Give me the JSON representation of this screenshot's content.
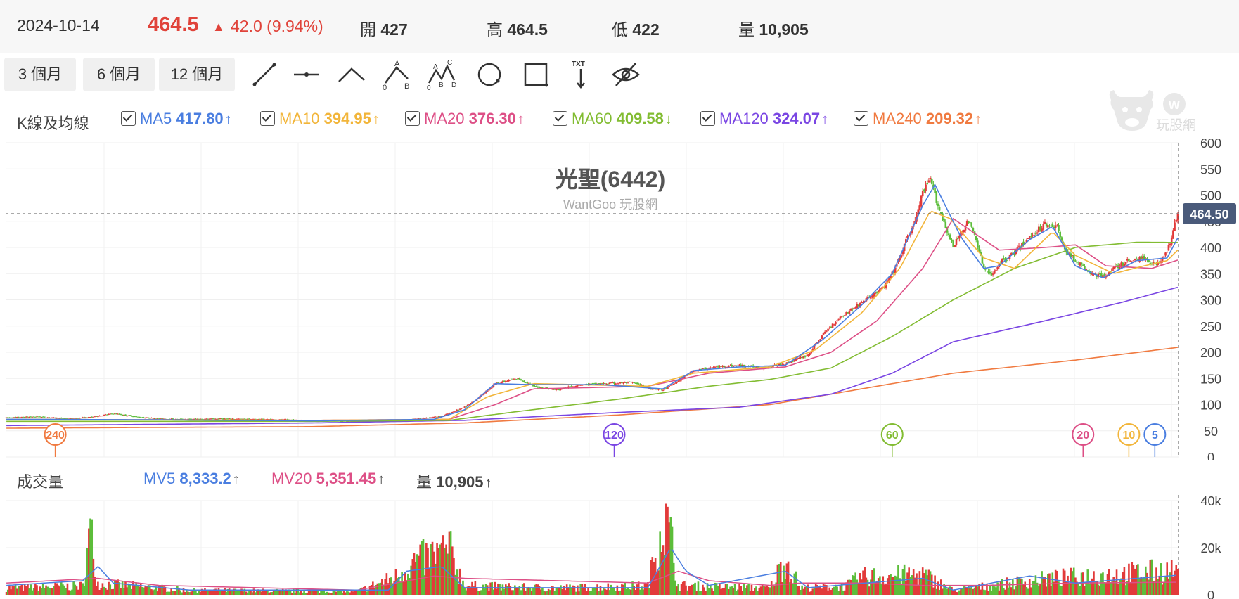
{
  "header": {
    "date": "2024-10-14",
    "price": "464.5",
    "change_arrow": "▲",
    "change": "42.0 (9.94%)",
    "open_label": "開",
    "open": "427",
    "high_label": "高",
    "high": "464.5",
    "low_label": "低",
    "low": "422",
    "volume_label": "量",
    "volume": "10,905"
  },
  "periods": [
    "3 個月",
    "6 個月",
    "12 個月"
  ],
  "tools": [
    "line-tool-icon",
    "horizontal-line-tool-icon",
    "angle-tool-icon",
    "abc-wave-tool-icon",
    "abcd-wave-tool-icon",
    "circle-tool-icon",
    "rectangle-tool-icon",
    "text-tool-icon",
    "hide-drawings-icon"
  ],
  "tool_labels": {
    "a": "A",
    "b": "B",
    "c": "C",
    "d": "D",
    "zero": "0",
    "txt": "TXT"
  },
  "legend": {
    "title": "K線及均線",
    "ma": [
      {
        "name": "MA5",
        "value": "417.80",
        "arrow": "↑",
        "color": "#4a7ee0"
      },
      {
        "name": "MA10",
        "value": "394.95",
        "arrow": "↑",
        "color": "#f2b53a"
      },
      {
        "name": "MA20",
        "value": "376.30",
        "arrow": "↑",
        "color": "#dd4f86"
      },
      {
        "name": "MA60",
        "value": "409.58",
        "arrow": "↓",
        "color": "#82bc32"
      },
      {
        "name": "MA120",
        "value": "324.07",
        "arrow": "↑",
        "color": "#7a46e3"
      },
      {
        "name": "MA240",
        "value": "209.32",
        "arrow": "↑",
        "color": "#f07a40"
      }
    ]
  },
  "watermark": {
    "title": "光聖(6442)",
    "subtitle": "WantGoo 玩股網",
    "logo_text": "玩股網"
  },
  "volume_legend": {
    "title": "成交量",
    "mv5_label": "MV5",
    "mv5": "8,333.2",
    "mv5_arrow": "↑",
    "mv5_color": "#4a7ee0",
    "mv20_label": "MV20",
    "mv20": "5,351.45",
    "mv20_arrow": "↑",
    "mv20_color": "#dd4f86",
    "vol_label": "量",
    "vol": "10,905",
    "vol_arrow": "↑"
  },
  "chart_data": {
    "type": "candlestick",
    "title": "光聖(6442)",
    "price_axis": {
      "ticks": [
        0,
        50,
        100,
        150,
        200,
        250,
        300,
        350,
        400,
        450,
        500,
        550,
        600
      ],
      "ylim": [
        0,
        600
      ]
    },
    "current_price": 464.5,
    "current_price_label": "464.50",
    "volume_axis": {
      "tick_labels": [
        "0",
        "20k",
        "40k"
      ],
      "ticks": [
        0,
        20000,
        40000
      ],
      "ylim": [
        0,
        40000
      ]
    },
    "colors": {
      "up": "#e23a3a",
      "down": "#5cbd3a",
      "ma5": "#4a7ee0",
      "ma10": "#f2b53a",
      "ma20": "#dd4f86",
      "ma60": "#82bc32",
      "ma120": "#7a46e3",
      "ma240": "#f07a40"
    },
    "price_keypoints": [
      [
        0,
        75
      ],
      [
        20,
        77
      ],
      [
        40,
        73
      ],
      [
        55,
        76
      ],
      [
        70,
        83
      ],
      [
        90,
        75
      ],
      [
        110,
        72
      ],
      [
        140,
        73
      ],
      [
        170,
        72
      ],
      [
        200,
        70
      ],
      [
        230,
        68
      ],
      [
        260,
        70
      ],
      [
        285,
        78
      ],
      [
        300,
        95
      ],
      [
        310,
        115
      ],
      [
        320,
        140
      ],
      [
        335,
        150
      ],
      [
        345,
        135
      ],
      [
        360,
        128
      ],
      [
        375,
        138
      ],
      [
        390,
        140
      ],
      [
        410,
        142
      ],
      [
        420,
        132
      ],
      [
        430,
        128
      ],
      [
        440,
        145
      ],
      [
        450,
        165
      ],
      [
        465,
        172
      ],
      [
        480,
        175
      ],
      [
        495,
        170
      ],
      [
        510,
        178
      ],
      [
        525,
        195
      ],
      [
        535,
        235
      ],
      [
        545,
        265
      ],
      [
        555,
        285
      ],
      [
        565,
        305
      ],
      [
        575,
        325
      ],
      [
        580,
        350
      ],
      [
        585,
        380
      ],
      [
        590,
        420
      ],
      [
        595,
        450
      ],
      [
        600,
        505
      ],
      [
        605,
        530
      ],
      [
        610,
        480
      ],
      [
        615,
        440
      ],
      [
        620,
        400
      ],
      [
        625,
        430
      ],
      [
        630,
        450
      ],
      [
        635,
        415
      ],
      [
        640,
        360
      ],
      [
        645,
        345
      ],
      [
        650,
        370
      ],
      [
        660,
        390
      ],
      [
        670,
        420
      ],
      [
        680,
        445
      ],
      [
        688,
        440
      ],
      [
        692,
        400
      ],
      [
        700,
        375
      ],
      [
        710,
        350
      ],
      [
        718,
        345
      ],
      [
        725,
        360
      ],
      [
        735,
        375
      ],
      [
        745,
        380
      ],
      [
        752,
        368
      ],
      [
        758,
        380
      ],
      [
        762,
        410
      ],
      [
        765,
        450
      ],
      [
        767,
        464.5
      ]
    ],
    "ma_keypoints": {
      "ma5": [
        [
          0,
          72
        ],
        [
          100,
          71
        ],
        [
          200,
          69
        ],
        [
          280,
          72
        ],
        [
          300,
          90
        ],
        [
          320,
          140
        ],
        [
          345,
          138
        ],
        [
          390,
          138
        ],
        [
          430,
          130
        ],
        [
          450,
          165
        ],
        [
          480,
          172
        ],
        [
          510,
          175
        ],
        [
          535,
          225
        ],
        [
          560,
          290
        ],
        [
          580,
          350
        ],
        [
          600,
          480
        ],
        [
          608,
          520
        ],
        [
          625,
          420
        ],
        [
          640,
          360
        ],
        [
          650,
          365
        ],
        [
          670,
          415
        ],
        [
          685,
          440
        ],
        [
          700,
          365
        ],
        [
          718,
          342
        ],
        [
          740,
          375
        ],
        [
          760,
          380
        ],
        [
          767,
          418
        ]
      ],
      "ma10": [
        [
          0,
          72
        ],
        [
          200,
          70
        ],
        [
          290,
          72
        ],
        [
          315,
          115
        ],
        [
          345,
          140
        ],
        [
          420,
          135
        ],
        [
          450,
          160
        ],
        [
          500,
          172
        ],
        [
          530,
          205
        ],
        [
          560,
          275
        ],
        [
          585,
          360
        ],
        [
          605,
          470
        ],
        [
          618,
          455
        ],
        [
          640,
          380
        ],
        [
          660,
          360
        ],
        [
          685,
          430
        ],
        [
          700,
          385
        ],
        [
          725,
          350
        ],
        [
          745,
          365
        ],
        [
          760,
          375
        ],
        [
          767,
          395
        ]
      ],
      "ma20": [
        [
          0,
          72
        ],
        [
          200,
          70
        ],
        [
          290,
          72
        ],
        [
          320,
          100
        ],
        [
          345,
          130
        ],
        [
          420,
          135
        ],
        [
          460,
          160
        ],
        [
          510,
          172
        ],
        [
          540,
          200
        ],
        [
          570,
          260
        ],
        [
          600,
          360
        ],
        [
          620,
          455
        ],
        [
          650,
          395
        ],
        [
          680,
          400
        ],
        [
          700,
          405
        ],
        [
          720,
          365
        ],
        [
          750,
          360
        ],
        [
          767,
          376
        ]
      ],
      "ma60": [
        [
          0,
          68
        ],
        [
          200,
          68
        ],
        [
          290,
          70
        ],
        [
          330,
          85
        ],
        [
          400,
          110
        ],
        [
          460,
          135
        ],
        [
          500,
          148
        ],
        [
          540,
          170
        ],
        [
          580,
          230
        ],
        [
          620,
          300
        ],
        [
          660,
          360
        ],
        [
          700,
          400
        ],
        [
          740,
          410
        ],
        [
          767,
          409.6
        ]
      ],
      "ma120": [
        [
          0,
          60
        ],
        [
          200,
          65
        ],
        [
          300,
          70
        ],
        [
          400,
          85
        ],
        [
          480,
          95
        ],
        [
          540,
          120
        ],
        [
          580,
          160
        ],
        [
          620,
          220
        ],
        [
          680,
          260
        ],
        [
          730,
          295
        ],
        [
          767,
          324
        ]
      ],
      "ma240": [
        [
          0,
          55
        ],
        [
          200,
          58
        ],
        [
          300,
          65
        ],
        [
          400,
          80
        ],
        [
          500,
          100
        ],
        [
          560,
          130
        ],
        [
          620,
          160
        ],
        [
          700,
          185
        ],
        [
          767,
          209.3
        ]
      ]
    },
    "volume_keypoints": [
      [
        0,
        3000
      ],
      [
        50,
        4000
      ],
      [
        55,
        28000
      ],
      [
        60,
        5000
      ],
      [
        120,
        2000
      ],
      [
        230,
        1500
      ],
      [
        255,
        8000
      ],
      [
        265,
        14000
      ],
      [
        290,
        20000
      ],
      [
        300,
        4000
      ],
      [
        360,
        3000
      ],
      [
        420,
        4000
      ],
      [
        430,
        35000
      ],
      [
        435,
        25000
      ],
      [
        440,
        4000
      ],
      [
        500,
        3000
      ],
      [
        510,
        16000
      ],
      [
        520,
        3000
      ],
      [
        550,
        4000
      ],
      [
        560,
        8000
      ],
      [
        600,
        9000
      ],
      [
        620,
        2000
      ],
      [
        680,
        7000
      ],
      [
        767,
        10905
      ]
    ],
    "mv5_keypoints": [
      [
        0,
        4000
      ],
      [
        50,
        6000
      ],
      [
        60,
        12000
      ],
      [
        70,
        5000
      ],
      [
        120,
        2000
      ],
      [
        250,
        2000
      ],
      [
        262,
        10000
      ],
      [
        285,
        12000
      ],
      [
        300,
        3000
      ],
      [
        420,
        3000
      ],
      [
        435,
        20000
      ],
      [
        445,
        10000
      ],
      [
        460,
        4000
      ],
      [
        510,
        10000
      ],
      [
        525,
        3000
      ],
      [
        600,
        7000
      ],
      [
        620,
        2000
      ],
      [
        670,
        8000
      ],
      [
        700,
        5000
      ],
      [
        767,
        8333
      ]
    ],
    "mv20_keypoints": [
      [
        0,
        5000
      ],
      [
        60,
        7000
      ],
      [
        100,
        4000
      ],
      [
        230,
        2000
      ],
      [
        280,
        8000
      ],
      [
        300,
        7000
      ],
      [
        420,
        5000
      ],
      [
        440,
        10000
      ],
      [
        460,
        6000
      ],
      [
        500,
        4000
      ],
      [
        520,
        5000
      ],
      [
        560,
        5000
      ],
      [
        600,
        4000
      ],
      [
        640,
        4000
      ],
      [
        700,
        5000
      ],
      [
        767,
        5351
      ]
    ],
    "markers": [
      {
        "label": "240",
        "ma": "ma240"
      },
      {
        "label": "120",
        "ma": "ma120"
      },
      {
        "label": "60",
        "ma": "ma60"
      },
      {
        "label": "20",
        "ma": "ma20"
      },
      {
        "label": "10",
        "ma": "ma10"
      },
      {
        "label": "5",
        "ma": "ma5"
      }
    ]
  }
}
